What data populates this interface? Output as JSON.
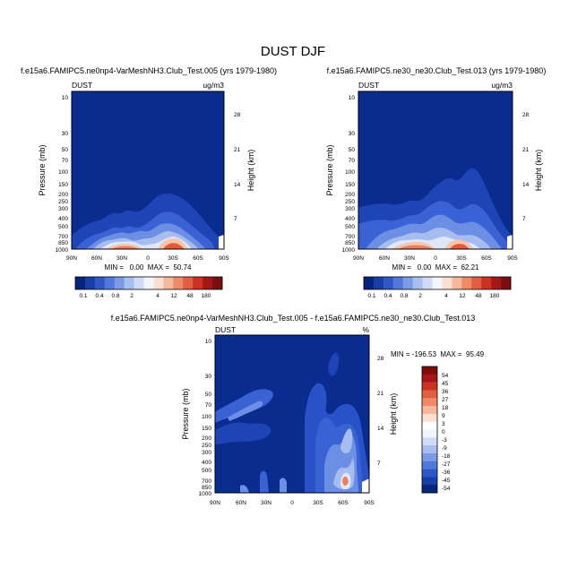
{
  "figure": {
    "title": "DUST DJF"
  },
  "chart_data": [
    {
      "type": "heatmap",
      "title": "f.e15a6.FAMIPC5.ne0np4-VarMeshNH3.Club_Test.005 (yrs 1979-1980)",
      "left_label": "DUST",
      "right_label": "ug/m3",
      "ylabel": "Pressure (mb)",
      "ylabel_right": "Height (km)",
      "x_ticks": [
        "90N",
        "60N",
        "30N",
        "0",
        "30S",
        "60S",
        "90S"
      ],
      "y_ticks": [
        "10",
        "30",
        "50",
        "70",
        "100",
        "150",
        "200",
        "250",
        "300",
        "400",
        "500",
        "700",
        "850",
        "1000"
      ],
      "y_ticks_right": [
        "28",
        "21",
        "14",
        "7"
      ],
      "stats": "MIN =   0.00  MAX =  50.74",
      "colorbar": [
        "0.1",
        "0.4",
        "0.8",
        "2",
        "4",
        "12",
        "48",
        "180"
      ]
    },
    {
      "type": "heatmap",
      "title": "f.e15a6.FAMIPC5.ne30_ne30.Club_Test.013 (yrs 1979-1980)",
      "left_label": "DUST",
      "right_label": "ug/m3",
      "ylabel": "Pressure (mb)",
      "ylabel_right": "Height (km)",
      "x_ticks": [
        "90N",
        "60N",
        "30N",
        "0",
        "30S",
        "60S",
        "90S"
      ],
      "y_ticks": [
        "10",
        "30",
        "50",
        "70",
        "100",
        "150",
        "200",
        "250",
        "300",
        "400",
        "500",
        "700",
        "850",
        "1000"
      ],
      "y_ticks_right": [
        "28",
        "21",
        "14",
        "7"
      ],
      "stats": "MIN =   0.00  MAX =  62.21",
      "colorbar": [
        "0.1",
        "0.4",
        "0.8",
        "2",
        "4",
        "12",
        "48",
        "180"
      ]
    },
    {
      "type": "heatmap",
      "title": "f.e15a6.FAMIPC5.ne0np4-VarMeshNH3.Club_Test.005 - f.e15a6.FAMIPC5.ne30_ne30.Club_Test.013",
      "left_label": "DUST",
      "right_label": "%",
      "ylabel": "Pressure (mb)",
      "ylabel_right": "Height (km)",
      "x_ticks": [
        "90N",
        "60N",
        "30N",
        "0",
        "30S",
        "60S",
        "90S"
      ],
      "y_ticks": [
        "10",
        "30",
        "50",
        "70",
        "100",
        "150",
        "200",
        "250",
        "300",
        "400",
        "500",
        "700",
        "850",
        "1000"
      ],
      "y_ticks_right": [
        "28",
        "21",
        "14",
        "7"
      ],
      "stats": "MIN = -196.53  MAX =  95.49",
      "colorbar": [
        "54",
        "45",
        "36",
        "27",
        "18",
        "9",
        "3",
        "0",
        "-3",
        "-9",
        "-18",
        "-27",
        "-36",
        "-45",
        "-54"
      ]
    }
  ]
}
